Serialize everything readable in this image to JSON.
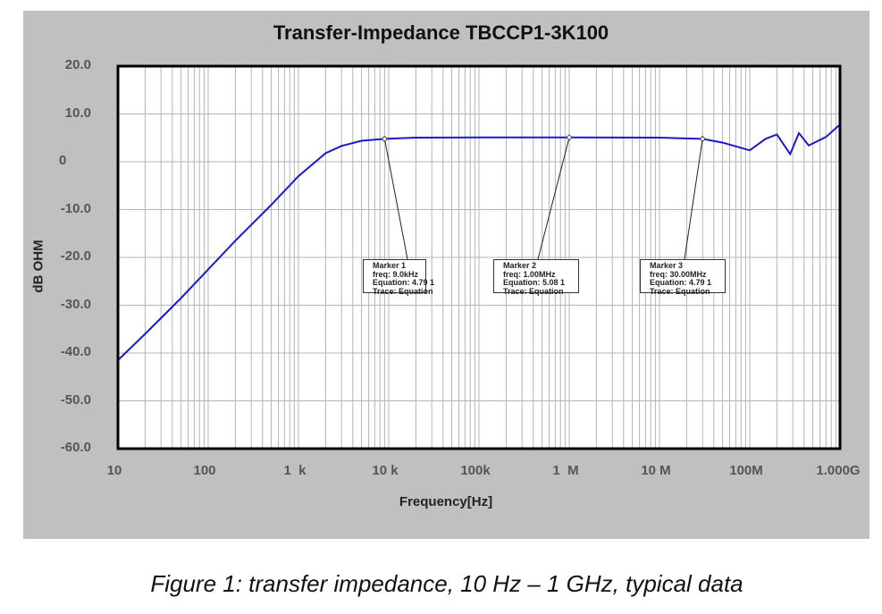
{
  "chart_data": {
    "type": "line",
    "title": "Transfer-Impedance TBCCP1-3K100",
    "xlabel": "Frequency[Hz]",
    "ylabel": "dB OHM",
    "xscale": "log",
    "xlim": [
      10,
      1000000000
    ],
    "ylim": [
      -60,
      20
    ],
    "grid": true,
    "x_tick_labels": [
      "10",
      "100",
      "1  k",
      "10 k",
      "100k",
      "1  M",
      "10 M",
      "100M",
      "1.000G"
    ],
    "y_tick_labels": [
      "20.0",
      "10.0",
      "0",
      "-10.0",
      "-20.0",
      "-30.0",
      "-40.0",
      "-50.0",
      "-60.0"
    ],
    "series": [
      {
        "name": "Equation",
        "color": "#1a1acc",
        "x": [
          10,
          20,
          50,
          100,
          200,
          500,
          1000,
          2000,
          3000,
          5000,
          9000,
          20000,
          100000,
          1000000,
          10000000,
          30000000,
          50000000,
          100000000,
          150000000,
          200000000,
          280000000,
          350000000,
          450000000,
          700000000,
          1000000000
        ],
        "y": [
          -41.5,
          -36.0,
          -28.5,
          -22.5,
          -16.5,
          -9.0,
          -3.0,
          1.8,
          3.3,
          4.4,
          4.79,
          5.05,
          5.08,
          5.08,
          5.05,
          4.79,
          4.0,
          2.4,
          4.8,
          5.7,
          1.6,
          6.0,
          3.4,
          5.2,
          7.8
        ]
      }
    ],
    "markers": [
      {
        "label": "Marker 1",
        "freq": "freq: 9.0kHz",
        "equation": "Equation: 4.79 1",
        "trace": "Trace: Equation",
        "x": 9000,
        "y": 4.79
      },
      {
        "label": "Marker 2",
        "freq": "freq: 1.00MHz",
        "equation": "Equation: 5.08 1",
        "trace": "Trace: Equation",
        "x": 1000000,
        "y": 5.08
      },
      {
        "label": "Marker 3",
        "freq": "freq: 30.00MHz",
        "equation": "Equation: 4.79 1",
        "trace": "Trace: Equation",
        "x": 30000000,
        "y": 4.79
      }
    ],
    "legend": "none"
  },
  "caption": "Figure 1: transfer impedance, 10 Hz – 1 GHz, typical data",
  "colors": {
    "panel": "#c0c0c0",
    "plot_bg": "#ffffff",
    "grid": "#b4b4b4",
    "trace": "#1a1acc",
    "axis": "#000000"
  }
}
